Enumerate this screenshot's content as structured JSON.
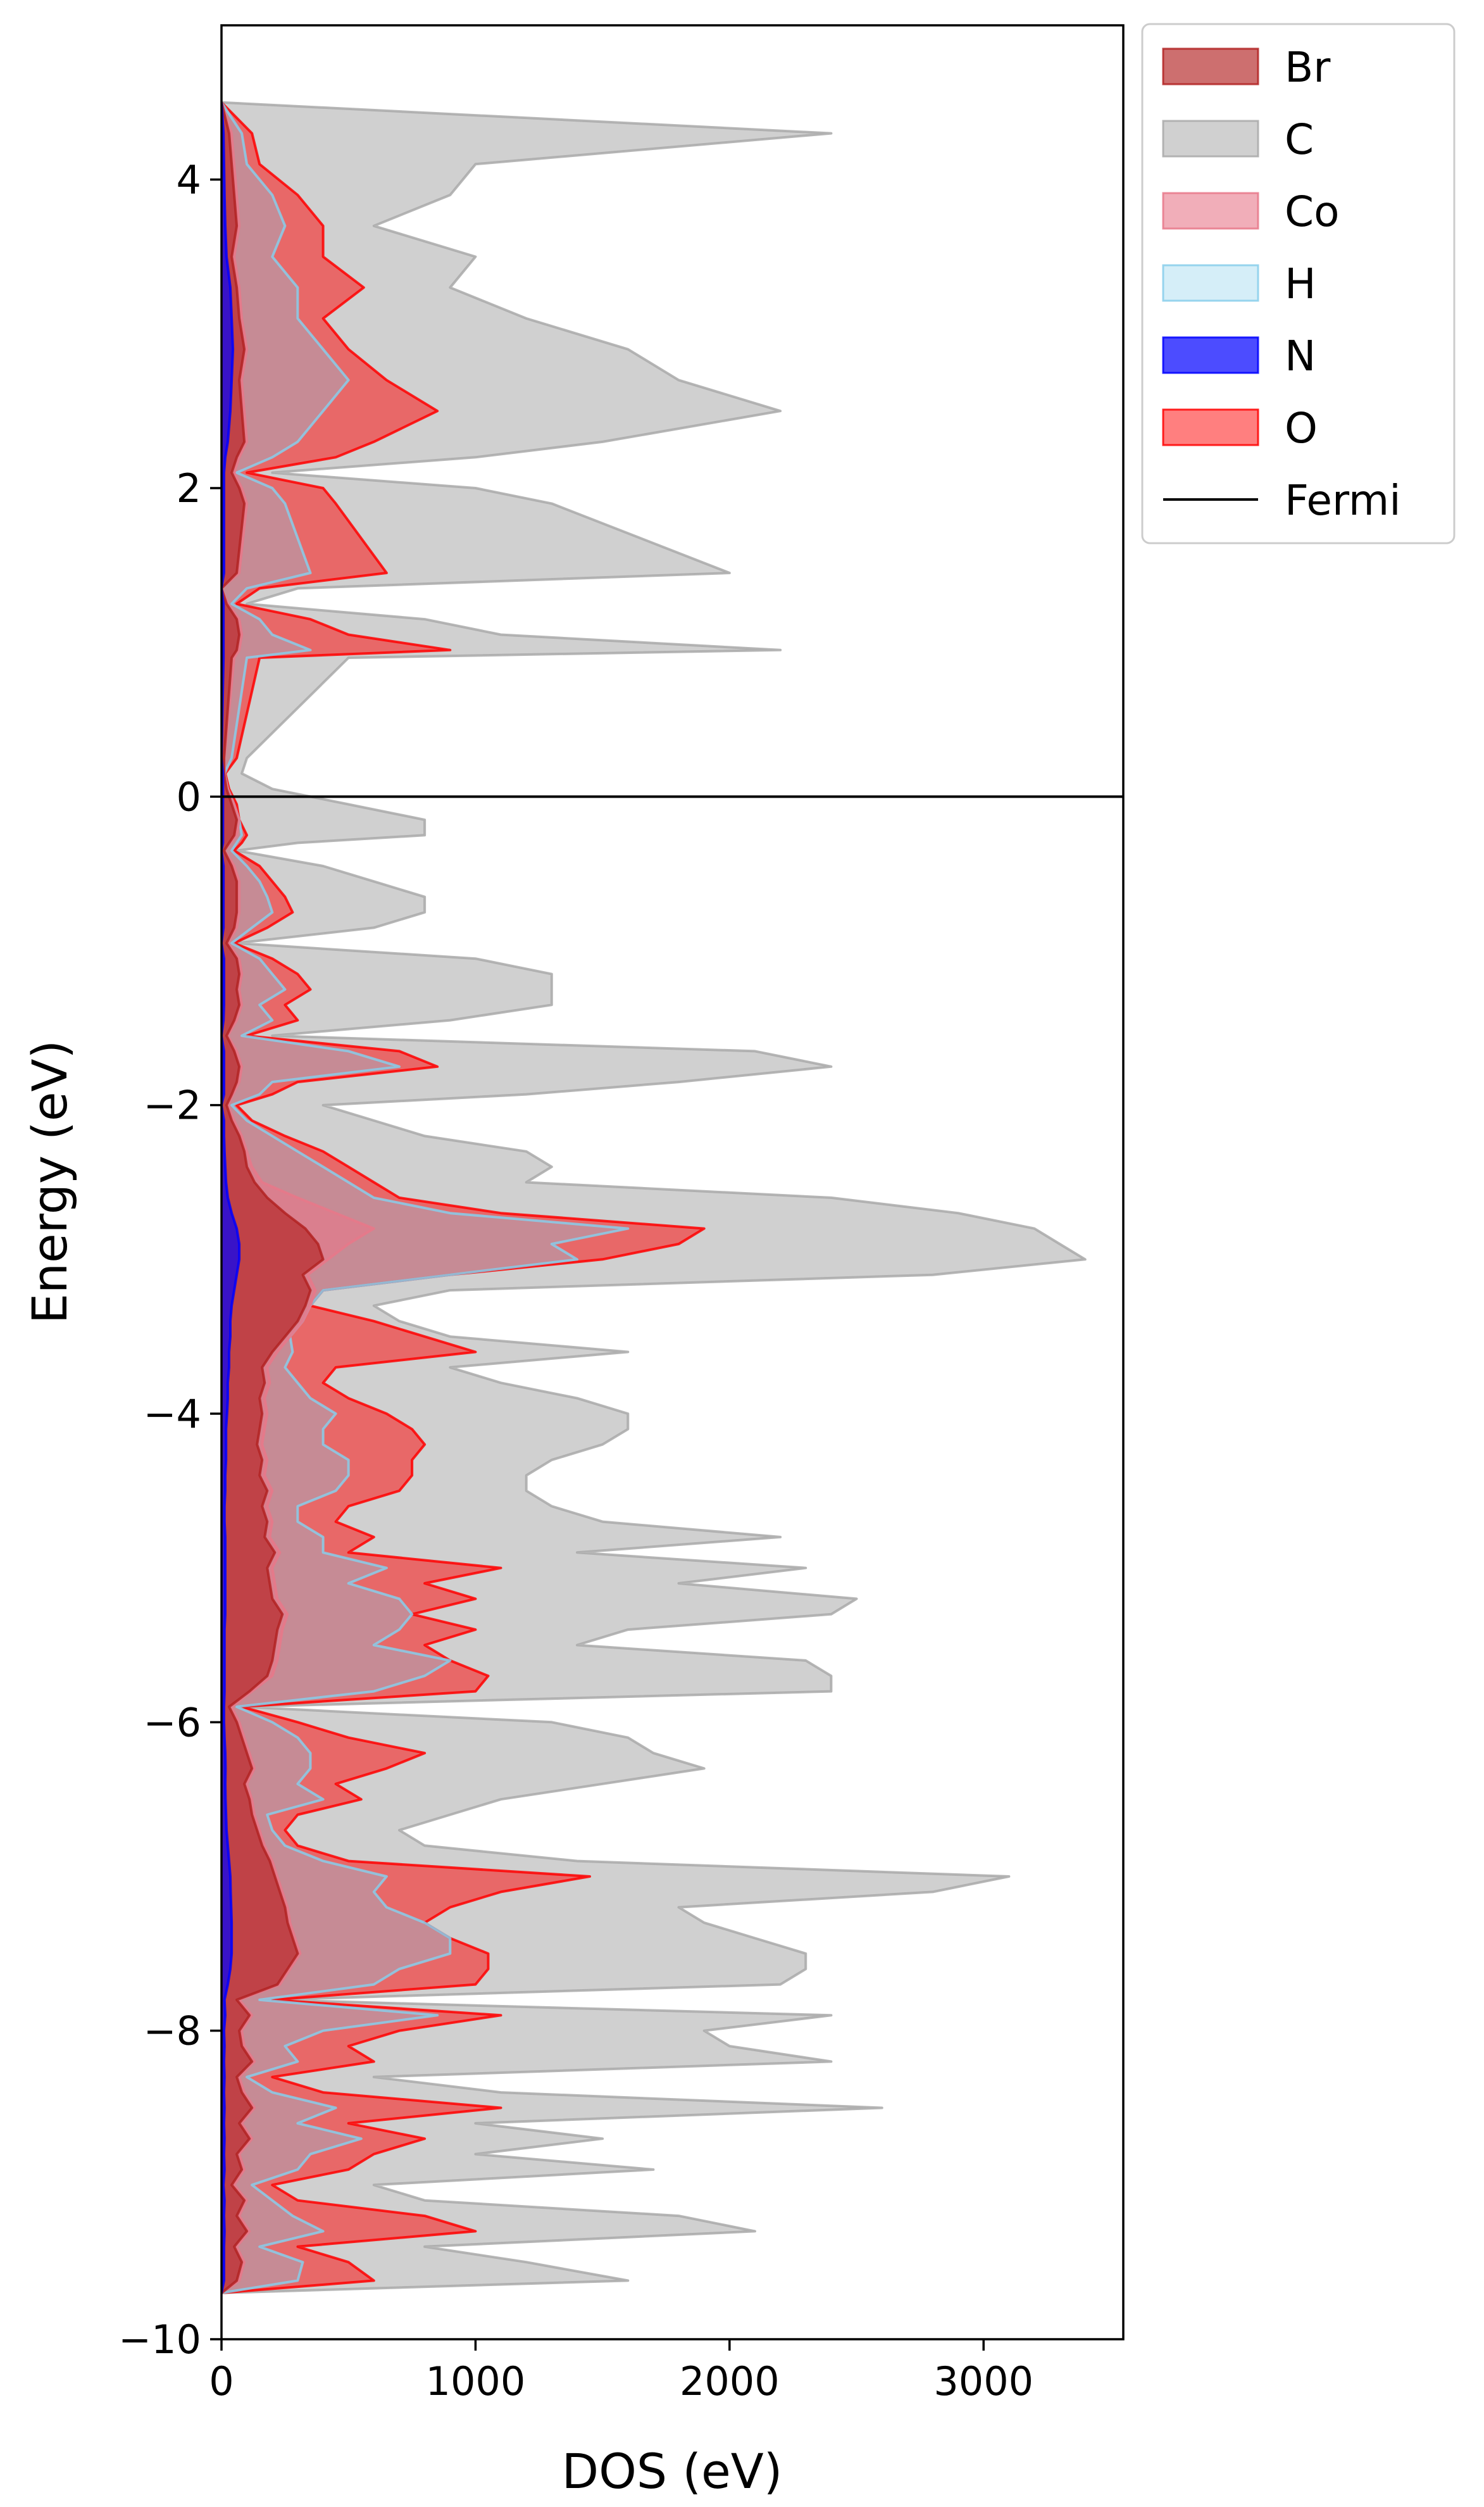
{
  "chart_data": {
    "type": "area",
    "orientation": "horizontal",
    "title": "",
    "xlabel": "DOS (eV)",
    "ylabel": "Energy (eV)",
    "xlim": [
      0,
      3550
    ],
    "ylim": [
      -10,
      5
    ],
    "xticks": [
      0,
      1000,
      2000,
      3000
    ],
    "xtick_labels": [
      "0",
      "1000",
      "2000",
      "3000"
    ],
    "yticks": [
      -10,
      -8,
      -6,
      -4,
      -2,
      0,
      2,
      4
    ],
    "ytick_labels": [
      "−10",
      "−8",
      "−6",
      "−4",
      "−2",
      "0",
      "2",
      "4"
    ],
    "grid": false,
    "legend_position": "outside-top-right",
    "fermi_level": 0,
    "stack_order": [
      "N",
      "Br",
      "Co",
      "H",
      "O",
      "C"
    ],
    "series": [
      {
        "name": "Br",
        "color": "#b22222",
        "fill_opacity": 0.65
      },
      {
        "name": "C",
        "color": "#a9a9a9",
        "fill_opacity": 0.55
      },
      {
        "name": "Co",
        "color": "#e8788a",
        "fill_opacity": 0.6
      },
      {
        "name": "H",
        "color": "#87ceeb",
        "fill_opacity": 0.35
      },
      {
        "name": "N",
        "color": "#0000ff",
        "fill_opacity": 0.7
      },
      {
        "name": "O",
        "color": "#ff0000",
        "fill_opacity": 0.5
      }
    ],
    "legend_fermi_label": "Fermi",
    "stack_profile": {
      "energy": [
        -9.7,
        -9.62,
        -9.5,
        -9.4,
        -9.3,
        -9.2,
        -9.1,
        -9.0,
        -8.9,
        -8.8,
        -8.7,
        -8.6,
        -8.5,
        -8.4,
        -8.3,
        -8.2,
        -8.1,
        -8.0,
        -7.9,
        -7.8,
        -7.7,
        -7.6,
        -7.5,
        -7.4,
        -7.3,
        -7.2,
        -7.1,
        -7.0,
        -6.9,
        -6.8,
        -6.7,
        -6.6,
        -6.5,
        -6.4,
        -6.3,
        -6.2,
        -6.1,
        -6.0,
        -5.9,
        -5.8,
        -5.7,
        -5.6,
        -5.5,
        -5.4,
        -5.3,
        -5.2,
        -5.1,
        -5.0,
        -4.9,
        -4.8,
        -4.7,
        -4.6,
        -4.5,
        -4.4,
        -4.3,
        -4.2,
        -4.1,
        -4.0,
        -3.9,
        -3.8,
        -3.7,
        -3.6,
        -3.5,
        -3.4,
        -3.3,
        -3.2,
        -3.1,
        -3.0,
        -2.9,
        -2.8,
        -2.7,
        -2.6,
        -2.5,
        -2.4,
        -2.3,
        -2.2,
        -2.1,
        -2.0,
        -1.93,
        -1.85,
        -1.75,
        -1.65,
        -1.55,
        -1.45,
        -1.35,
        -1.25,
        -1.15,
        -1.05,
        -0.95,
        -0.85,
        -0.75,
        -0.65,
        -0.55,
        -0.45,
        -0.35,
        -0.3,
        -0.25,
        -0.15,
        -0.05,
        0.05,
        0.15,
        0.25,
        0.9,
        0.95,
        1.05,
        1.15,
        1.25,
        1.35,
        1.45,
        1.9,
        2.0,
        2.1,
        2.2,
        2.3,
        2.5,
        2.7,
        2.9,
        3.1,
        3.3,
        3.5,
        3.7,
        3.9,
        4.1,
        4.3,
        4.5,
        4.7,
        4.9,
        5.0
      ],
      "N": [
        0,
        10,
        10,
        10,
        12,
        10,
        12,
        8,
        12,
        10,
        12,
        10,
        12,
        10,
        12,
        10,
        12,
        10,
        15,
        12,
        25,
        35,
        40,
        40,
        40,
        38,
        36,
        35,
        30,
        25,
        20,
        18,
        16,
        15,
        16,
        15,
        12,
        10,
        10,
        12,
        12,
        12,
        12,
        12,
        15,
        15,
        15,
        15,
        15,
        15,
        12,
        12,
        15,
        15,
        18,
        18,
        18,
        22,
        25,
        25,
        30,
        30,
        35,
        35,
        40,
        50,
        60,
        70,
        70,
        60,
        40,
        25,
        18,
        15,
        12,
        10,
        10,
        0,
        10,
        10,
        10,
        10,
        0,
        8,
        10,
        10,
        10,
        10,
        0,
        8,
        8,
        8,
        8,
        8,
        0,
        6,
        6,
        6,
        6,
        6,
        6,
        0,
        8,
        8,
        8,
        8,
        8,
        0,
        10,
        10,
        10,
        10,
        15,
        25,
        35,
        40,
        45,
        40,
        35,
        20,
        15,
        12,
        10,
        8,
        0
      ],
      "Br": [
        0,
        60,
        80,
        50,
        100,
        60,
        90,
        40,
        80,
        60,
        110,
        70,
        120,
        80,
        60,
        120,
        80,
        70,
        110,
        60,
        220,
        260,
        300,
        280,
        260,
        250,
        230,
        210,
        190,
        160,
        140,
        120,
        110,
        90,
        120,
        100,
        80,
        60,
        30,
        110,
        180,
        200,
        210,
        220,
        240,
        200,
        190,
        180,
        210,
        170,
        180,
        160,
        180,
        150,
        160,
        140,
        150,
        160,
        150,
        170,
        160,
        200,
        250,
        300,
        330,
        350,
        320,
        400,
        380,
        330,
        250,
        180,
        130,
        100,
        90,
        70,
        40,
        20,
        40,
        60,
        70,
        50,
        20,
        50,
        70,
        60,
        70,
        60,
        20,
        50,
        60,
        60,
        60,
        40,
        10,
        30,
        50,
        60,
        40,
        20,
        10,
        10,
        40,
        60,
        70,
        60,
        20,
        0,
        60,
        90,
        70,
        40,
        60,
        90,
        80,
        70,
        90,
        70,
        60,
        40,
        60,
        50,
        40,
        30,
        0
      ],
      "Co": [
        0,
        70,
        90,
        60,
        110,
        70,
        100,
        50,
        90,
        70,
        120,
        80,
        130,
        90,
        70,
        130,
        90,
        80,
        120,
        70,
        230,
        270,
        310,
        290,
        270,
        260,
        240,
        220,
        200,
        170,
        150,
        130,
        120,
        100,
        130,
        110,
        90,
        70,
        40,
        120,
        200,
        220,
        230,
        240,
        260,
        220,
        210,
        200,
        230,
        190,
        200,
        180,
        200,
        170,
        180,
        160,
        170,
        180,
        170,
        190,
        180,
        220,
        270,
        320,
        350,
        370,
        340,
        420,
        500,
        600,
        450,
        300,
        160,
        120,
        100,
        80,
        50,
        25,
        45,
        70,
        80,
        60,
        25,
        60,
        80,
        70,
        80,
        70,
        25,
        60,
        70,
        70,
        70,
        50,
        12,
        35,
        60,
        70,
        50,
        25,
        12,
        12,
        50,
        70,
        80,
        70,
        25,
        0,
        70,
        100,
        80,
        50,
        70,
        100,
        90,
        80,
        100,
        80,
        70,
        50,
        70,
        60,
        50,
        40,
        0
      ],
      "H": [
        0,
        300,
        320,
        150,
        400,
        280,
        200,
        120,
        300,
        350,
        550,
        300,
        450,
        200,
        100,
        300,
        250,
        400,
        850,
        150,
        600,
        700,
        900,
        900,
        800,
        650,
        600,
        650,
        400,
        250,
        200,
        180,
        400,
        300,
        350,
        350,
        300,
        200,
        60,
        600,
        800,
        900,
        600,
        700,
        750,
        700,
        500,
        650,
        400,
        400,
        300,
        300,
        450,
        500,
        500,
        400,
        400,
        450,
        350,
        300,
        250,
        280,
        220,
        200,
        250,
        400,
        900,
        1400,
        1300,
        1600,
        900,
        600,
        500,
        400,
        300,
        200,
        100,
        40,
        150,
        200,
        700,
        500,
        80,
        200,
        150,
        250,
        200,
        150,
        40,
        120,
        200,
        180,
        150,
        100,
        40,
        60,
        80,
        50,
        40,
        20,
        10,
        40,
        100,
        350,
        200,
        150,
        40,
        100,
        350,
        250,
        200,
        60,
        200,
        300,
        400,
        500,
        400,
        300,
        300,
        200,
        250,
        200,
        100,
        80,
        0
      ],
      "O": [
        0,
        600,
        500,
        300,
        1000,
        800,
        300,
        200,
        500,
        600,
        800,
        500,
        1100,
        400,
        200,
        600,
        500,
        700,
        1100,
        200,
        1000,
        1050,
        1050,
        900,
        800,
        900,
        1100,
        1450,
        500,
        300,
        250,
        300,
        550,
        450,
        650,
        800,
        500,
        300,
        80,
        1000,
        1050,
        900,
        800,
        1000,
        700,
        1000,
        800,
        1100,
        500,
        600,
        450,
        500,
        700,
        750,
        750,
        800,
        750,
        650,
        500,
        400,
        450,
        1000,
        800,
        600,
        250,
        300,
        900,
        1500,
        1800,
        1900,
        1100,
        700,
        600,
        500,
        400,
        250,
        120,
        60,
        200,
        300,
        850,
        700,
        100,
        300,
        250,
        350,
        300,
        200,
        50,
        180,
        280,
        250,
        200,
        150,
        50,
        80,
        100,
        70,
        60,
        30,
        15,
        60,
        150,
        900,
        500,
        350,
        60,
        150,
        650,
        450,
        400,
        100,
        450,
        600,
        850,
        650,
        500,
        400,
        560,
        400,
        400,
        300,
        150,
        120,
        0
      ],
      "C": [
        0,
        1600,
        1200,
        800,
        2100,
        1800,
        800,
        600,
        1700,
        1000,
        1500,
        1000,
        2600,
        1100,
        600,
        2400,
        2000,
        1900,
        2400,
        200,
        2200,
        2300,
        2300,
        2100,
        1900,
        1800,
        2800,
        3100,
        1400,
        800,
        700,
        900,
        1100,
        1500,
        1900,
        1700,
        1600,
        1300,
        80,
        2400,
        2400,
        2300,
        1400,
        1600,
        2400,
        2500,
        1800,
        2300,
        1400,
        2200,
        1500,
        1300,
        1200,
        1200,
        1300,
        1500,
        1600,
        1600,
        1400,
        1100,
        900,
        1600,
        900,
        700,
        600,
        900,
        2800,
        3400,
        3300,
        3200,
        2900,
        2400,
        1200,
        1300,
        1200,
        800,
        600,
        400,
        1200,
        1800,
        2400,
        2100,
        200,
        900,
        1300,
        1300,
        1300,
        1000,
        60,
        600,
        800,
        800,
        600,
        400,
        60,
        300,
        800,
        800,
        500,
        200,
        80,
        100,
        500,
        2200,
        1100,
        800,
        100,
        300,
        2000,
        1300,
        1000,
        200,
        1000,
        1500,
        2200,
        1800,
        1600,
        1200,
        900,
        1000,
        600,
        900,
        1000,
        2400,
        0
      ]
    }
  }
}
